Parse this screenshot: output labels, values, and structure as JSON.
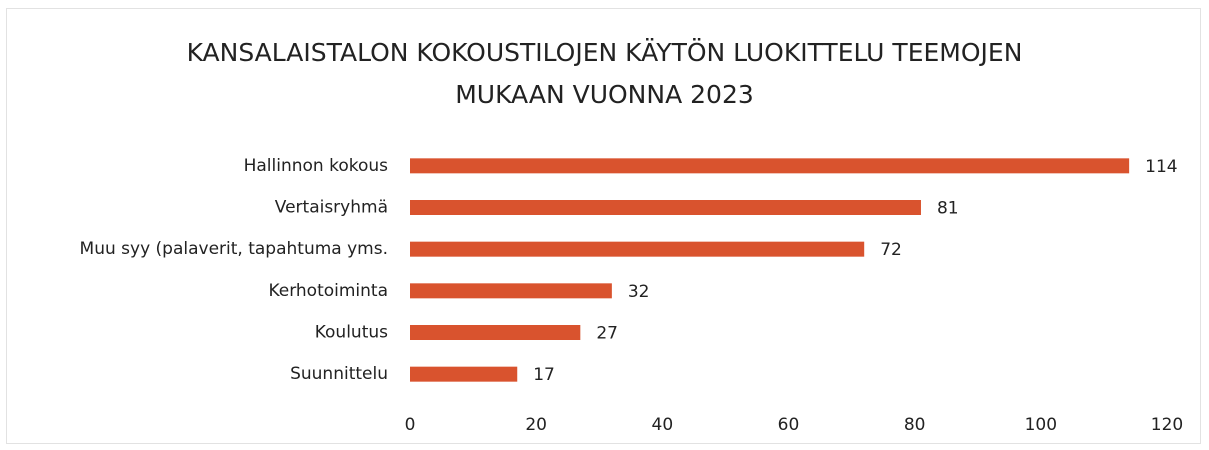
{
  "chart_data": {
    "type": "hbar",
    "title": "KANSALAISTALON KOKOUSTILOJEN KÄYTÖN LUOKITTELU TEEMOJEN\nMUKAAN VUONNA 2023",
    "categories": [
      "Hallinnon kokous",
      "Vertaisryhmä",
      "Muu syy (palaverit, tapahtuma yms.",
      "Kerhotoiminta",
      "Koulutus",
      "Suunnittelu"
    ],
    "values": [
      114,
      81,
      72,
      32,
      27,
      17
    ],
    "color": "#d9532e",
    "xlim": [
      0,
      120
    ],
    "xticks": [
      0,
      20,
      40,
      60,
      80,
      100,
      120
    ],
    "grid": false
  }
}
